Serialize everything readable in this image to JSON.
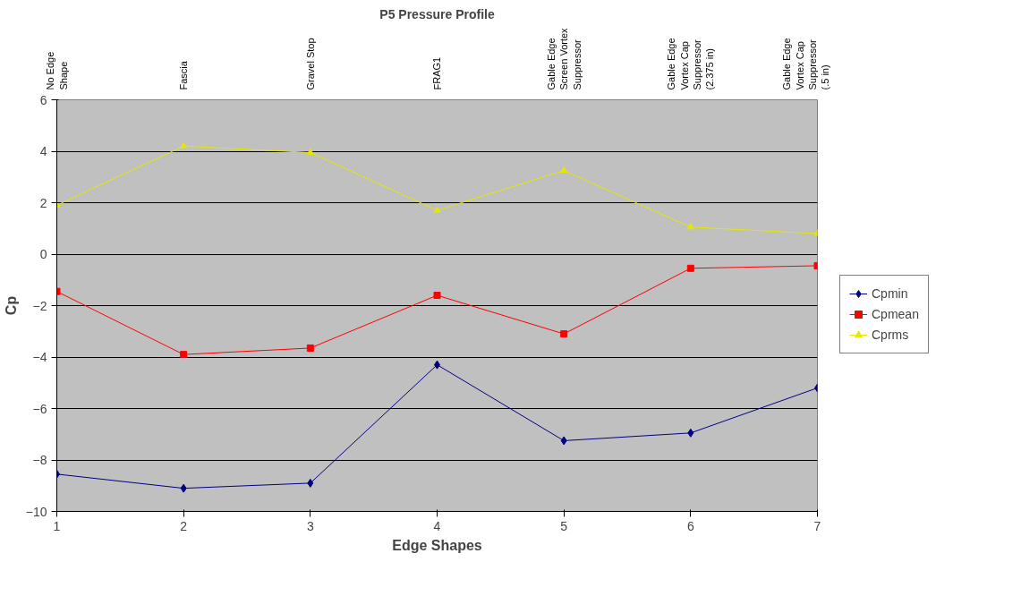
{
  "chart_data": {
    "type": "line",
    "title": "P5 Pressure Profile",
    "xlabel": "Edge Shapes",
    "ylabel": "Cp",
    "x": [
      1,
      2,
      3,
      4,
      5,
      6,
      7
    ],
    "xlim": [
      1,
      7
    ],
    "xticks": [
      1,
      2,
      3,
      4,
      5,
      6,
      7
    ],
    "annotations": [
      "No Edge\nShape",
      "Fascia",
      "Gravel Stop",
      "FRAG1",
      "Gable Edge\nScreen Vortex\nSuppressor",
      "Gable Edge\nVortex Cap\nSuppressor\n(2.375 in)",
      "Gable Edge\nVortex Cap\nSuppressor\n(.5 in)"
    ],
    "ylim": [
      -10,
      6
    ],
    "yticks": [
      -10,
      -8,
      -6,
      -4,
      -2,
      0,
      2,
      4,
      6
    ],
    "grid": "y",
    "legend": "right",
    "series": [
      {
        "name": "Cpmin",
        "color": "#000080",
        "marker": "diamond",
        "values": [
          -8.55,
          -9.1,
          -8.9,
          -4.3,
          -7.25,
          -6.95,
          -5.2
        ]
      },
      {
        "name": "Cpmean",
        "color": "#ff0000",
        "marker": "square",
        "values": [
          -1.45,
          -3.9,
          -3.65,
          -1.6,
          -3.1,
          -0.55,
          -0.45
        ]
      },
      {
        "name": "Cprms",
        "color": "#e6e600",
        "marker": "triangle",
        "values": [
          1.9,
          4.2,
          3.95,
          1.7,
          3.25,
          1.05,
          0.8
        ]
      }
    ]
  }
}
